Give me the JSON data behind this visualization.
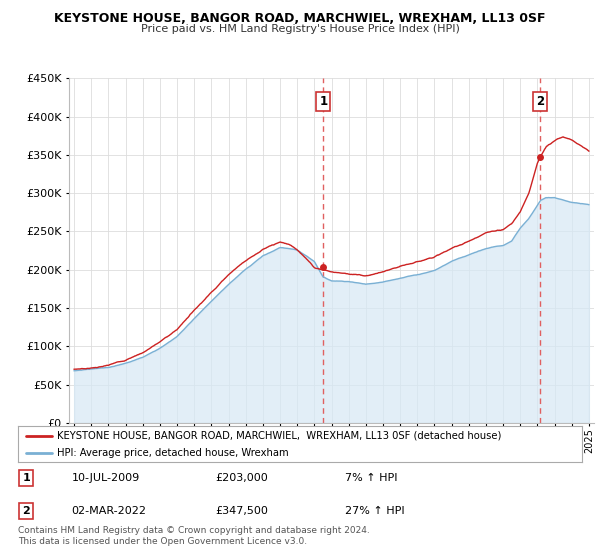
{
  "title": "KEYSTONE HOUSE, BANGOR ROAD, MARCHWIEL, WREXHAM, LL13 0SF",
  "subtitle": "Price paid vs. HM Land Registry's House Price Index (HPI)",
  "legend_line1": "KEYSTONE HOUSE, BANGOR ROAD, MARCHWIEL,  WREXHAM, LL13 0SF (detached house)",
  "legend_line2": "HPI: Average price, detached house, Wrexham",
  "transaction1_date": "10-JUL-2009",
  "transaction1_price": "£203,000",
  "transaction1_pct": "7% ↑ HPI",
  "transaction2_date": "02-MAR-2022",
  "transaction2_price": "£347,500",
  "transaction2_pct": "27% ↑ HPI",
  "footer": "Contains HM Land Registry data © Crown copyright and database right 2024.\nThis data is licensed under the Open Government Licence v3.0.",
  "hpi_color": "#7ab0d4",
  "price_color": "#cc2222",
  "fill_color": "#d6e8f5",
  "marker_color": "#cc2222",
  "dashed_line_color": "#e06060",
  "background_color": "#ffffff",
  "grid_color": "#dddddd",
  "ylim": [
    0,
    450000
  ],
  "yticks": [
    0,
    50000,
    100000,
    150000,
    200000,
    250000,
    300000,
    350000,
    400000,
    450000
  ],
  "year_start": 1995,
  "year_end": 2025,
  "transaction1_year": 2009.52,
  "transaction2_year": 2022.17,
  "transaction1_value": 203000,
  "transaction2_value": 347500
}
